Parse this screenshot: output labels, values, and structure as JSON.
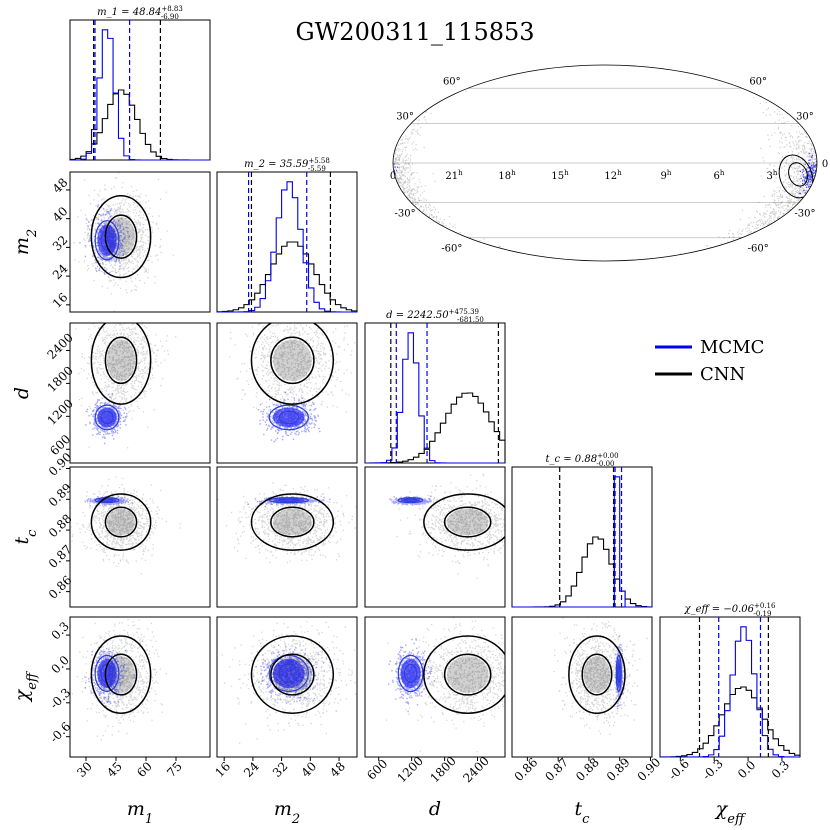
{
  "title": "GW200311_115853",
  "legend": {
    "position": "right-middle",
    "items": [
      {
        "label": "MCMC",
        "color": "#0000ee"
      },
      {
        "label": "CNN",
        "color": "#000000"
      }
    ]
  },
  "colors": {
    "mcmc": "#0000ee",
    "cnn": "#000000",
    "grid": "#bbbbbb"
  },
  "chart_data": {
    "type": "corner",
    "parameters": [
      {
        "key": "m1",
        "label": "m_1",
        "tick_values": [
          30,
          45,
          60,
          75
        ],
        "tick_labels": [
          "30",
          "45",
          "60",
          "75"
        ],
        "range": [
          22,
          92
        ],
        "hist_title": "m_1 = 48.84",
        "err_plus": "+8.83",
        "err_minus": "-6.90",
        "quantiles": {
          "mcmc": [
            34.5,
            51.8
          ],
          "cnn": [
            33.8,
            67.2
          ]
        },
        "mean": {
          "mcmc": 40.5,
          "cnn": 47.5
        },
        "sigma": {
          "mcmc": 3.7,
          "cnn": 7.8
        }
      },
      {
        "key": "m2",
        "label": "m_2",
        "tick_values": [
          16,
          24,
          32,
          40,
          48
        ],
        "tick_labels": [
          "16",
          "24",
          "32",
          "40",
          "48"
        ],
        "range": [
          14,
          53
        ],
        "hist_title": "m_2 = 35.59",
        "err_plus": "+5.58",
        "err_minus": "-5.59",
        "quantiles": {
          "mcmc": [
            22.8,
            39.0
          ],
          "cnn": [
            23.6,
            45.6
          ]
        },
        "mean": {
          "mcmc": 34.0,
          "cnn": 35.0
        },
        "sigma": {
          "mcmc": 3.4,
          "cnn": 6.0
        }
      },
      {
        "key": "d",
        "label": "d",
        "tick_values": [
          600,
          1200,
          1800,
          2400
        ],
        "tick_labels": [
          "600",
          "1200",
          "1800",
          "2400"
        ],
        "range": [
          350,
          2900
        ],
        "hist_title": "d = 2242.50",
        "err_plus": "+475.39",
        "err_minus": "-681.50",
        "quantiles": {
          "mcmc": [
            920,
            1480
          ],
          "cnn": [
            820,
            2780
          ]
        },
        "mean": {
          "mcmc": 1180,
          "cnn": 2220
        },
        "sigma": {
          "mcmc": 140,
          "cnn": 420
        }
      },
      {
        "key": "tc",
        "label": "t_c",
        "tick_values": [
          0.86,
          0.87,
          0.88,
          0.89,
          0.9
        ],
        "tick_labels": [
          "0.86",
          "0.87",
          "0.88",
          "0.89",
          "0.90"
        ],
        "range": [
          0.855,
          0.9005
        ],
        "hist_title": "t_c = 0.88",
        "err_plus": "+0.00",
        "err_minus": "-0.00",
        "quantiles": {
          "mcmc": [
            0.8885,
            0.8906
          ],
          "cnn": [
            0.8705,
            0.888
          ]
        },
        "mean": {
          "mcmc": 0.8897,
          "cnn": 0.8826
        },
        "sigma": {
          "mcmc": 0.0005,
          "cnn": 0.0048
        }
      },
      {
        "key": "chi",
        "label": "χ_eff",
        "tick_values": [
          -0.6,
          -0.3,
          0.0,
          0.3
        ],
        "tick_labels": [
          "-0.6",
          "-0.3",
          "0.0",
          "0.3"
        ],
        "range": [
          -0.78,
          0.46
        ],
        "hist_title": "χ_eff = −0.06",
        "err_plus": "+0.16",
        "err_minus": "-0.19",
        "quantiles": {
          "mcmc": [
            -0.26,
            0.11
          ],
          "cnn": [
            -0.43,
            0.18
          ]
        },
        "mean": {
          "mcmc": -0.04,
          "cnn": -0.05
        },
        "sigma": {
          "mcmc": 0.1,
          "cnn": 0.18
        }
      }
    ],
    "skymap": {
      "projection": "mollweide",
      "ra_labels": [
        "0",
        "21",
        "18",
        "15",
        "12",
        "9",
        "6",
        "3",
        "0"
      ],
      "ra_unit": "h",
      "dec_labels": [
        "60°",
        "30°",
        "0",
        "-30°",
        "-60°"
      ]
    }
  }
}
